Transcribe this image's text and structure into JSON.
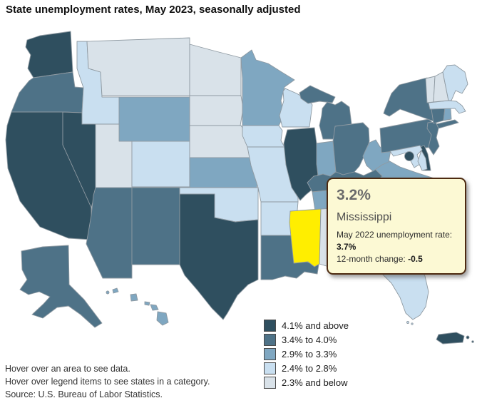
{
  "title": "State unemployment rates, May 2023, seasonally adjusted",
  "tooltip": {
    "value": "3.2%",
    "state": "Mississippi",
    "prev_label": "May 2022 unemployment rate: ",
    "prev_value": "3.7%",
    "change_label": "12-month change: ",
    "change_value": "-0.5",
    "background": "#FCF9D4",
    "border_color": "#4D2A10"
  },
  "legend": {
    "items": [
      {
        "label": "4.1% and above",
        "color": "#2F4F5F"
      },
      {
        "label": "3.4% to 4.0%",
        "color": "#4E7287"
      },
      {
        "label": "2.9% to 3.3%",
        "color": "#7FA7C1"
      },
      {
        "label": "2.4% to 2.8%",
        "color": "#C9DFF0"
      },
      {
        "label": "2.3% and below",
        "color": "#D9E2E9"
      }
    ]
  },
  "footer": {
    "lines": [
      "Hover over an area to see data.",
      "Hover over legend items to see states in a category.",
      "Source: U.S. Bureau of Labor Statistics."
    ]
  },
  "map": {
    "highlight_color": "#FFEE00",
    "border_color": "#8F9AA2",
    "highlighted_state": "Mississippi",
    "states": [
      {
        "id": "WA",
        "name": "Washington",
        "category": 0
      },
      {
        "id": "OR",
        "name": "Oregon",
        "category": 1
      },
      {
        "id": "CA",
        "name": "California",
        "category": 0
      },
      {
        "id": "NV",
        "name": "Nevada",
        "category": 0
      },
      {
        "id": "ID",
        "name": "Idaho",
        "category": 3
      },
      {
        "id": "MT",
        "name": "Montana",
        "category": 4
      },
      {
        "id": "WY",
        "name": "Wyoming",
        "category": 2
      },
      {
        "id": "UT",
        "name": "Utah",
        "category": 4
      },
      {
        "id": "CO",
        "name": "Colorado",
        "category": 3
      },
      {
        "id": "AZ",
        "name": "Arizona",
        "category": 1
      },
      {
        "id": "NM",
        "name": "New Mexico",
        "category": 1
      },
      {
        "id": "ND",
        "name": "North Dakota",
        "category": 4
      },
      {
        "id": "SD",
        "name": "South Dakota",
        "category": 4
      },
      {
        "id": "NE",
        "name": "Nebraska",
        "category": 4
      },
      {
        "id": "KS",
        "name": "Kansas",
        "category": 2
      },
      {
        "id": "OK",
        "name": "Oklahoma",
        "category": 3
      },
      {
        "id": "TX",
        "name": "Texas",
        "category": 0
      },
      {
        "id": "MN",
        "name": "Minnesota",
        "category": 2
      },
      {
        "id": "IA",
        "name": "Iowa",
        "category": 3
      },
      {
        "id": "MO",
        "name": "Missouri",
        "category": 3
      },
      {
        "id": "AR",
        "name": "Arkansas",
        "category": 3
      },
      {
        "id": "LA",
        "name": "Louisiana",
        "category": 1
      },
      {
        "id": "WI",
        "name": "Wisconsin",
        "category": 3
      },
      {
        "id": "IL",
        "name": "Illinois",
        "category": 0
      },
      {
        "id": "MI",
        "name": "Michigan",
        "category": 1
      },
      {
        "id": "IN",
        "name": "Indiana",
        "category": 2
      },
      {
        "id": "OH",
        "name": "Ohio",
        "category": 1
      },
      {
        "id": "KY",
        "name": "Kentucky",
        "category": 1
      },
      {
        "id": "TN",
        "name": "Tennessee",
        "category": 2
      },
      {
        "id": "MS",
        "name": "Mississippi",
        "category": "highlight"
      },
      {
        "id": "AL",
        "name": "Alabama",
        "category": 4
      },
      {
        "id": "GA",
        "name": "Georgia",
        "category": 2
      },
      {
        "id": "FL",
        "name": "Florida",
        "category": 3
      },
      {
        "id": "SC",
        "name": "South Carolina",
        "category": 2
      },
      {
        "id": "NC",
        "name": "North Carolina",
        "category": 1
      },
      {
        "id": "VA",
        "name": "Virginia",
        "category": 2
      },
      {
        "id": "WV",
        "name": "West Virginia",
        "category": 2
      },
      {
        "id": "PA",
        "name": "Pennsylvania",
        "category": 1
      },
      {
        "id": "NY",
        "name": "New York",
        "category": 1
      },
      {
        "id": "NJ",
        "name": "New Jersey",
        "category": 1
      },
      {
        "id": "DE",
        "name": "Delaware",
        "category": 0
      },
      {
        "id": "MD",
        "name": "Maryland",
        "category": 3
      },
      {
        "id": "DC",
        "name": "District of Columbia",
        "category": 0
      },
      {
        "id": "CT",
        "name": "Connecticut",
        "category": 1
      },
      {
        "id": "RI",
        "name": "Rhode Island",
        "category": 2
      },
      {
        "id": "MA",
        "name": "Massachusetts",
        "category": 3
      },
      {
        "id": "VT",
        "name": "Vermont",
        "category": 4
      },
      {
        "id": "NH",
        "name": "New Hampshire",
        "category": 4
      },
      {
        "id": "ME",
        "name": "Maine",
        "category": 3
      },
      {
        "id": "AK",
        "name": "Alaska",
        "category": 1
      },
      {
        "id": "HI",
        "name": "Hawaii",
        "category": 2
      },
      {
        "id": "PR",
        "name": "Puerto Rico",
        "category": 0
      }
    ]
  }
}
